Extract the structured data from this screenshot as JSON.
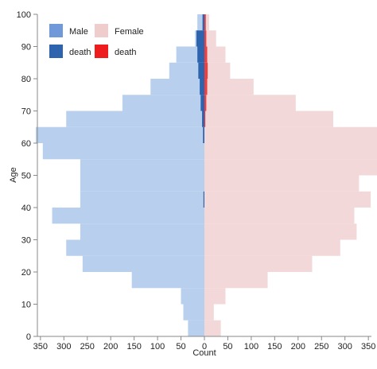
{
  "chart_data": {
    "type": "bar",
    "orientation": "horizontal-population-pyramid",
    "xlabel": "Count",
    "ylabel": "Age",
    "x_ticks": [
      "350",
      "300",
      "250",
      "200",
      "150",
      "100",
      "50",
      "0",
      "50",
      "100",
      "150",
      "200",
      "250",
      "300",
      "350"
    ],
    "y_ticks": [
      "0",
      "10",
      "20",
      "30",
      "40",
      "50",
      "60",
      "70",
      "80",
      "90",
      "100"
    ],
    "ylim": [
      0,
      100
    ],
    "age_bins": [
      0,
      5,
      10,
      15,
      20,
      25,
      30,
      35,
      40,
      45,
      50,
      55,
      60,
      65,
      70,
      75,
      80,
      85,
      90,
      95
    ],
    "series": [
      {
        "name": "Male",
        "side": "left",
        "values": [
          35,
          45,
          50,
          155,
          260,
          295,
          265,
          325,
          265,
          265,
          265,
          345,
          360,
          295,
          175,
          115,
          75,
          60,
          20,
          15
        ]
      },
      {
        "name": "Female",
        "side": "right",
        "values": [
          35,
          20,
          45,
          135,
          230,
          290,
          325,
          320,
          355,
          330,
          370,
          375,
          385,
          275,
          195,
          105,
          55,
          45,
          25,
          10
        ]
      },
      {
        "name": "death",
        "side": "left",
        "values": [
          0,
          0,
          0,
          0,
          0,
          0,
          0,
          0,
          2,
          0,
          0,
          0,
          3,
          5,
          8,
          10,
          13,
          15,
          17,
          4
        ]
      },
      {
        "name": "death",
        "side": "right",
        "values": [
          0,
          0,
          0,
          0,
          0,
          0,
          0,
          0,
          0,
          0,
          0,
          0,
          0,
          2,
          4,
          6,
          7,
          6,
          4,
          3
        ]
      }
    ],
    "legend": {
      "position": "top-left",
      "entries": [
        "Male",
        "Female",
        "death",
        "death"
      ]
    },
    "colors": {
      "male": "#b8cfed",
      "female": "#f2d8d8",
      "male_death": "#2d64ad",
      "female_death": "#ee3e3e",
      "legend_male": "#6f99d9",
      "legend_female": "#f0cdcd"
    }
  }
}
